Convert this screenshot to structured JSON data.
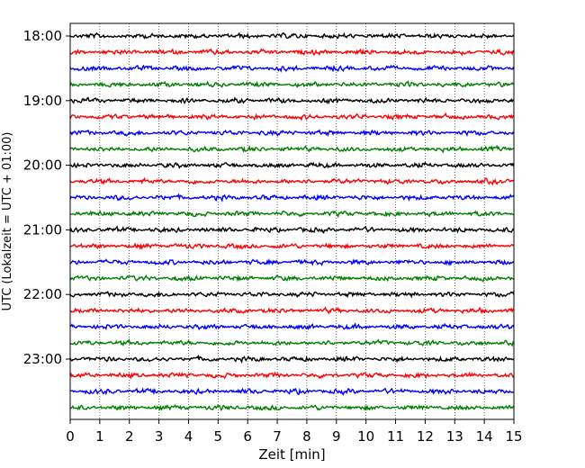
{
  "chart_data": {
    "type": "line",
    "xlabel": "Zeit  [min]",
    "ylabel": "UTC (Lokalzeit = UTC + 01:00)",
    "xlim": [
      0,
      15
    ],
    "x_ticks": [
      "0",
      "1",
      "2",
      "3",
      "4",
      "5",
      "6",
      "7",
      "8",
      "9",
      "10",
      "11",
      "12",
      "13",
      "14",
      "15"
    ],
    "y_ticks": [
      "18:00",
      "19:00",
      "20:00",
      "21:00",
      "22:00",
      "23:00"
    ],
    "trace_start_minutes": 0,
    "trace_interval_minutes": 15,
    "trace_count": 24,
    "trace_colors": [
      "#000000",
      "#ff0000",
      "#0000ff",
      "#007f00"
    ],
    "grid": "vertical dotted at each minute"
  }
}
